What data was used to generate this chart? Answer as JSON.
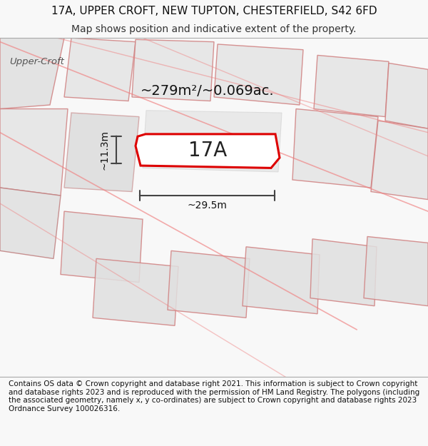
{
  "title": "17A, UPPER CROFT, NEW TUPTON, CHESTERFIELD, S42 6FD",
  "subtitle": "Map shows position and indicative extent of the property.",
  "footer": "Contains OS data © Crown copyright and database right 2021. This information is subject to Crown copyright and database rights 2023 and is reproduced with the permission of HM Land Registry. The polygons (including the associated geometry, namely x, y co-ordinates) are subject to Crown copyright and database rights 2023 Ordnance Survey 100026316.",
  "property_label": "17A",
  "area_label": "~279m²/~0.069ac.",
  "width_label": "~29.5m",
  "height_label": "~11.3m",
  "property_fill": "#ffffff",
  "property_edge": "#dd0000",
  "place_label": "Upper-Croft",
  "title_fontsize": 11,
  "subtitle_fontsize": 10,
  "footer_fontsize": 7.5,
  "label_fontsize": 20,
  "area_fontsize": 14,
  "dim_fontsize": 10,
  "map_bg": "#f0f0f0",
  "parcel_fc": "#e4e4e4",
  "parcel_ec": "#d08080",
  "road_color": "#f08080",
  "line_color": "#444444",
  "title_bg": "#ffffff",
  "footer_bg": "#ffffff"
}
